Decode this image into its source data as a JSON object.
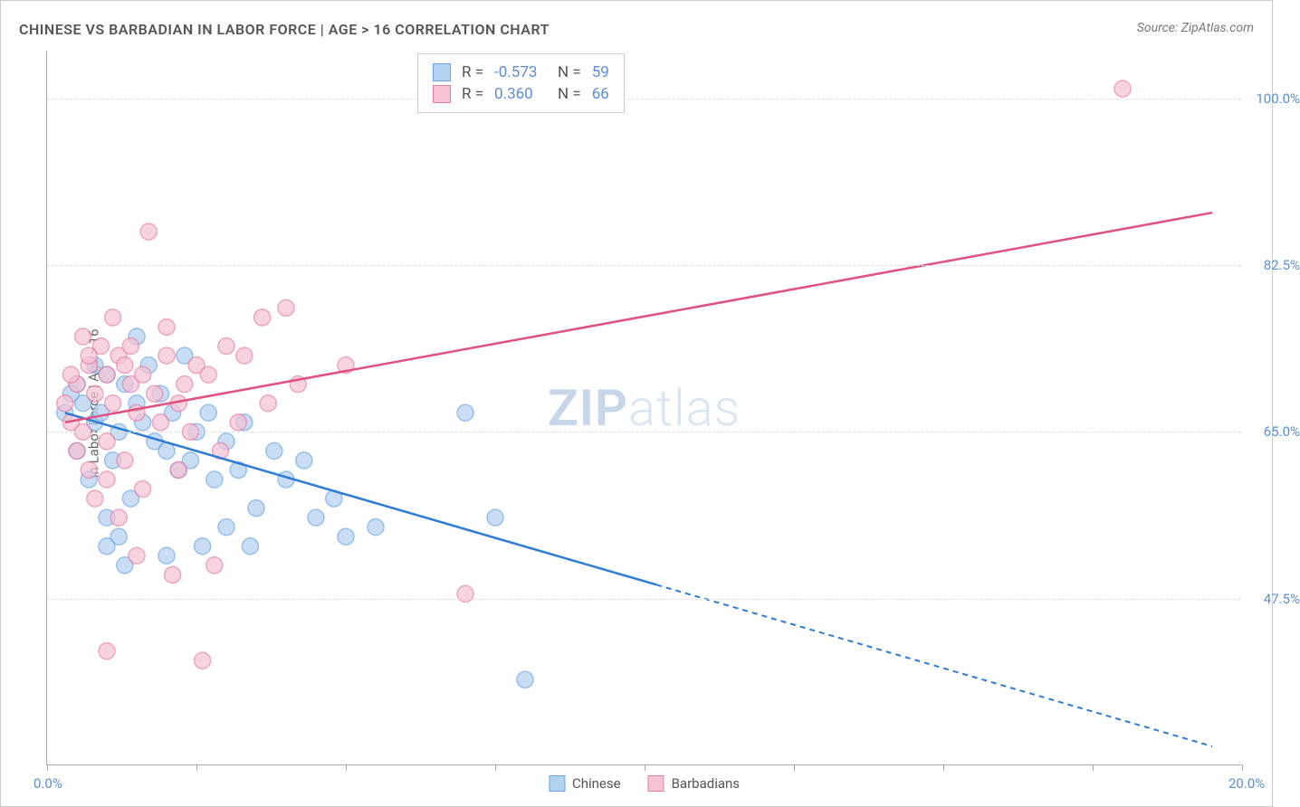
{
  "title": "CHINESE VS BARBADIAN IN LABOR FORCE | AGE > 16 CORRELATION CHART",
  "source": "Source: ZipAtlas.com",
  "watermark_bold": "ZIP",
  "watermark_light": "atlas",
  "y_axis_label": "In Labor Force | Age > 16",
  "chart": {
    "type": "scatter-with-regression",
    "background_color": "#ffffff",
    "grid_color": "#dddddd",
    "axis_color": "#aaaaaa",
    "label_color": "#5a8fd6",
    "xlim": [
      0,
      20
    ],
    "ylim": [
      30,
      105
    ],
    "x_ticks": [
      0,
      2.5,
      5,
      7.5,
      10,
      12.5,
      15,
      17.5,
      20
    ],
    "x_tick_labels": {
      "0": "0.0%",
      "20": "20.0%"
    },
    "y_gridlines": [
      47.5,
      65.0,
      82.5,
      100.0
    ],
    "y_tick_labels": [
      "47.5%",
      "65.0%",
      "82.5%",
      "100.0%"
    ],
    "series": [
      {
        "name": "Chinese",
        "color_fill": "#b3d1f0",
        "color_stroke": "#6ca5e0",
        "marker_radius": 9,
        "marker_opacity": 0.7,
        "regression": {
          "r": "-0.573",
          "n": "59",
          "line_color": "#2e7cd6",
          "start": [
            0.3,
            67
          ],
          "end": [
            19.5,
            32
          ],
          "solid_end_x": 10.2
        },
        "points": [
          [
            0.3,
            67
          ],
          [
            0.5,
            70
          ],
          [
            0.6,
            68
          ],
          [
            0.8,
            66
          ],
          [
            0.5,
            63
          ],
          [
            1.0,
            71
          ],
          [
            1.2,
            65
          ],
          [
            0.7,
            60
          ],
          [
            1.5,
            68
          ],
          [
            1.8,
            64
          ],
          [
            0.4,
            69
          ],
          [
            0.9,
            67
          ],
          [
            1.1,
            62
          ],
          [
            1.3,
            70
          ],
          [
            1.6,
            66
          ],
          [
            2.0,
            63
          ],
          [
            2.2,
            61
          ],
          [
            2.5,
            65
          ],
          [
            2.8,
            60
          ],
          [
            1.4,
            58
          ],
          [
            1.0,
            56
          ],
          [
            1.7,
            72
          ],
          [
            2.1,
            67
          ],
          [
            2.4,
            62
          ],
          [
            3.0,
            64
          ],
          [
            3.2,
            61
          ],
          [
            3.5,
            57
          ],
          [
            1.2,
            54
          ],
          [
            2.0,
            52
          ],
          [
            2.6,
            53
          ],
          [
            3.8,
            63
          ],
          [
            4.0,
            60
          ],
          [
            4.3,
            62
          ],
          [
            3.0,
            55
          ],
          [
            3.4,
            53
          ],
          [
            4.5,
            56
          ],
          [
            5.0,
            54
          ],
          [
            1.5,
            75
          ],
          [
            2.3,
            73
          ],
          [
            0.8,
            72
          ],
          [
            1.9,
            69
          ],
          [
            2.7,
            67
          ],
          [
            3.3,
            66
          ],
          [
            4.8,
            58
          ],
          [
            5.5,
            55
          ],
          [
            7.0,
            67
          ],
          [
            7.5,
            56
          ],
          [
            8.0,
            39
          ],
          [
            1.0,
            53
          ],
          [
            1.3,
            51
          ]
        ]
      },
      {
        "name": "Barbadians",
        "color_fill": "#f5c3d4",
        "color_stroke": "#e87fa6",
        "marker_radius": 9,
        "marker_opacity": 0.7,
        "regression": {
          "r": "0.360",
          "n": "66",
          "line_color": "#e0517f",
          "start": [
            0.3,
            66
          ],
          "end": [
            19.5,
            88
          ],
          "solid_end_x": 19.5
        },
        "points": [
          [
            0.3,
            68
          ],
          [
            0.5,
            70
          ],
          [
            0.7,
            72
          ],
          [
            0.4,
            66
          ],
          [
            0.8,
            69
          ],
          [
            1.0,
            71
          ],
          [
            1.2,
            73
          ],
          [
            0.6,
            65
          ],
          [
            1.4,
            70
          ],
          [
            1.1,
            68
          ],
          [
            0.9,
            74
          ],
          [
            1.3,
            72
          ],
          [
            1.6,
            71
          ],
          [
            1.8,
            69
          ],
          [
            2.0,
            73
          ],
          [
            2.2,
            68
          ],
          [
            2.5,
            72
          ],
          [
            0.5,
            63
          ],
          [
            0.7,
            61
          ],
          [
            1.0,
            64
          ],
          [
            1.5,
            67
          ],
          [
            1.9,
            66
          ],
          [
            2.3,
            70
          ],
          [
            2.7,
            71
          ],
          [
            3.0,
            74
          ],
          [
            3.3,
            73
          ],
          [
            3.6,
            77
          ],
          [
            4.0,
            78
          ],
          [
            1.7,
            86
          ],
          [
            0.8,
            58
          ],
          [
            1.2,
            56
          ],
          [
            1.5,
            52
          ],
          [
            2.1,
            50
          ],
          [
            2.8,
            51
          ],
          [
            1.0,
            42
          ],
          [
            2.6,
            41
          ],
          [
            0.6,
            75
          ],
          [
            1.1,
            77
          ],
          [
            1.4,
            74
          ],
          [
            2.0,
            76
          ],
          [
            2.4,
            65
          ],
          [
            2.9,
            63
          ],
          [
            3.2,
            66
          ],
          [
            3.7,
            68
          ],
          [
            4.2,
            70
          ],
          [
            5.0,
            72
          ],
          [
            7.0,
            48
          ],
          [
            18.0,
            101
          ],
          [
            0.4,
            71
          ],
          [
            0.7,
            73
          ],
          [
            1.0,
            60
          ],
          [
            1.3,
            62
          ],
          [
            1.6,
            59
          ],
          [
            2.2,
            61
          ]
        ]
      }
    ]
  },
  "bottom_legend": [
    {
      "label": "Chinese",
      "fill": "#b3d1f0",
      "stroke": "#6ca5e0"
    },
    {
      "label": "Barbadians",
      "fill": "#f5c3d4",
      "stroke": "#e87fa6"
    }
  ]
}
